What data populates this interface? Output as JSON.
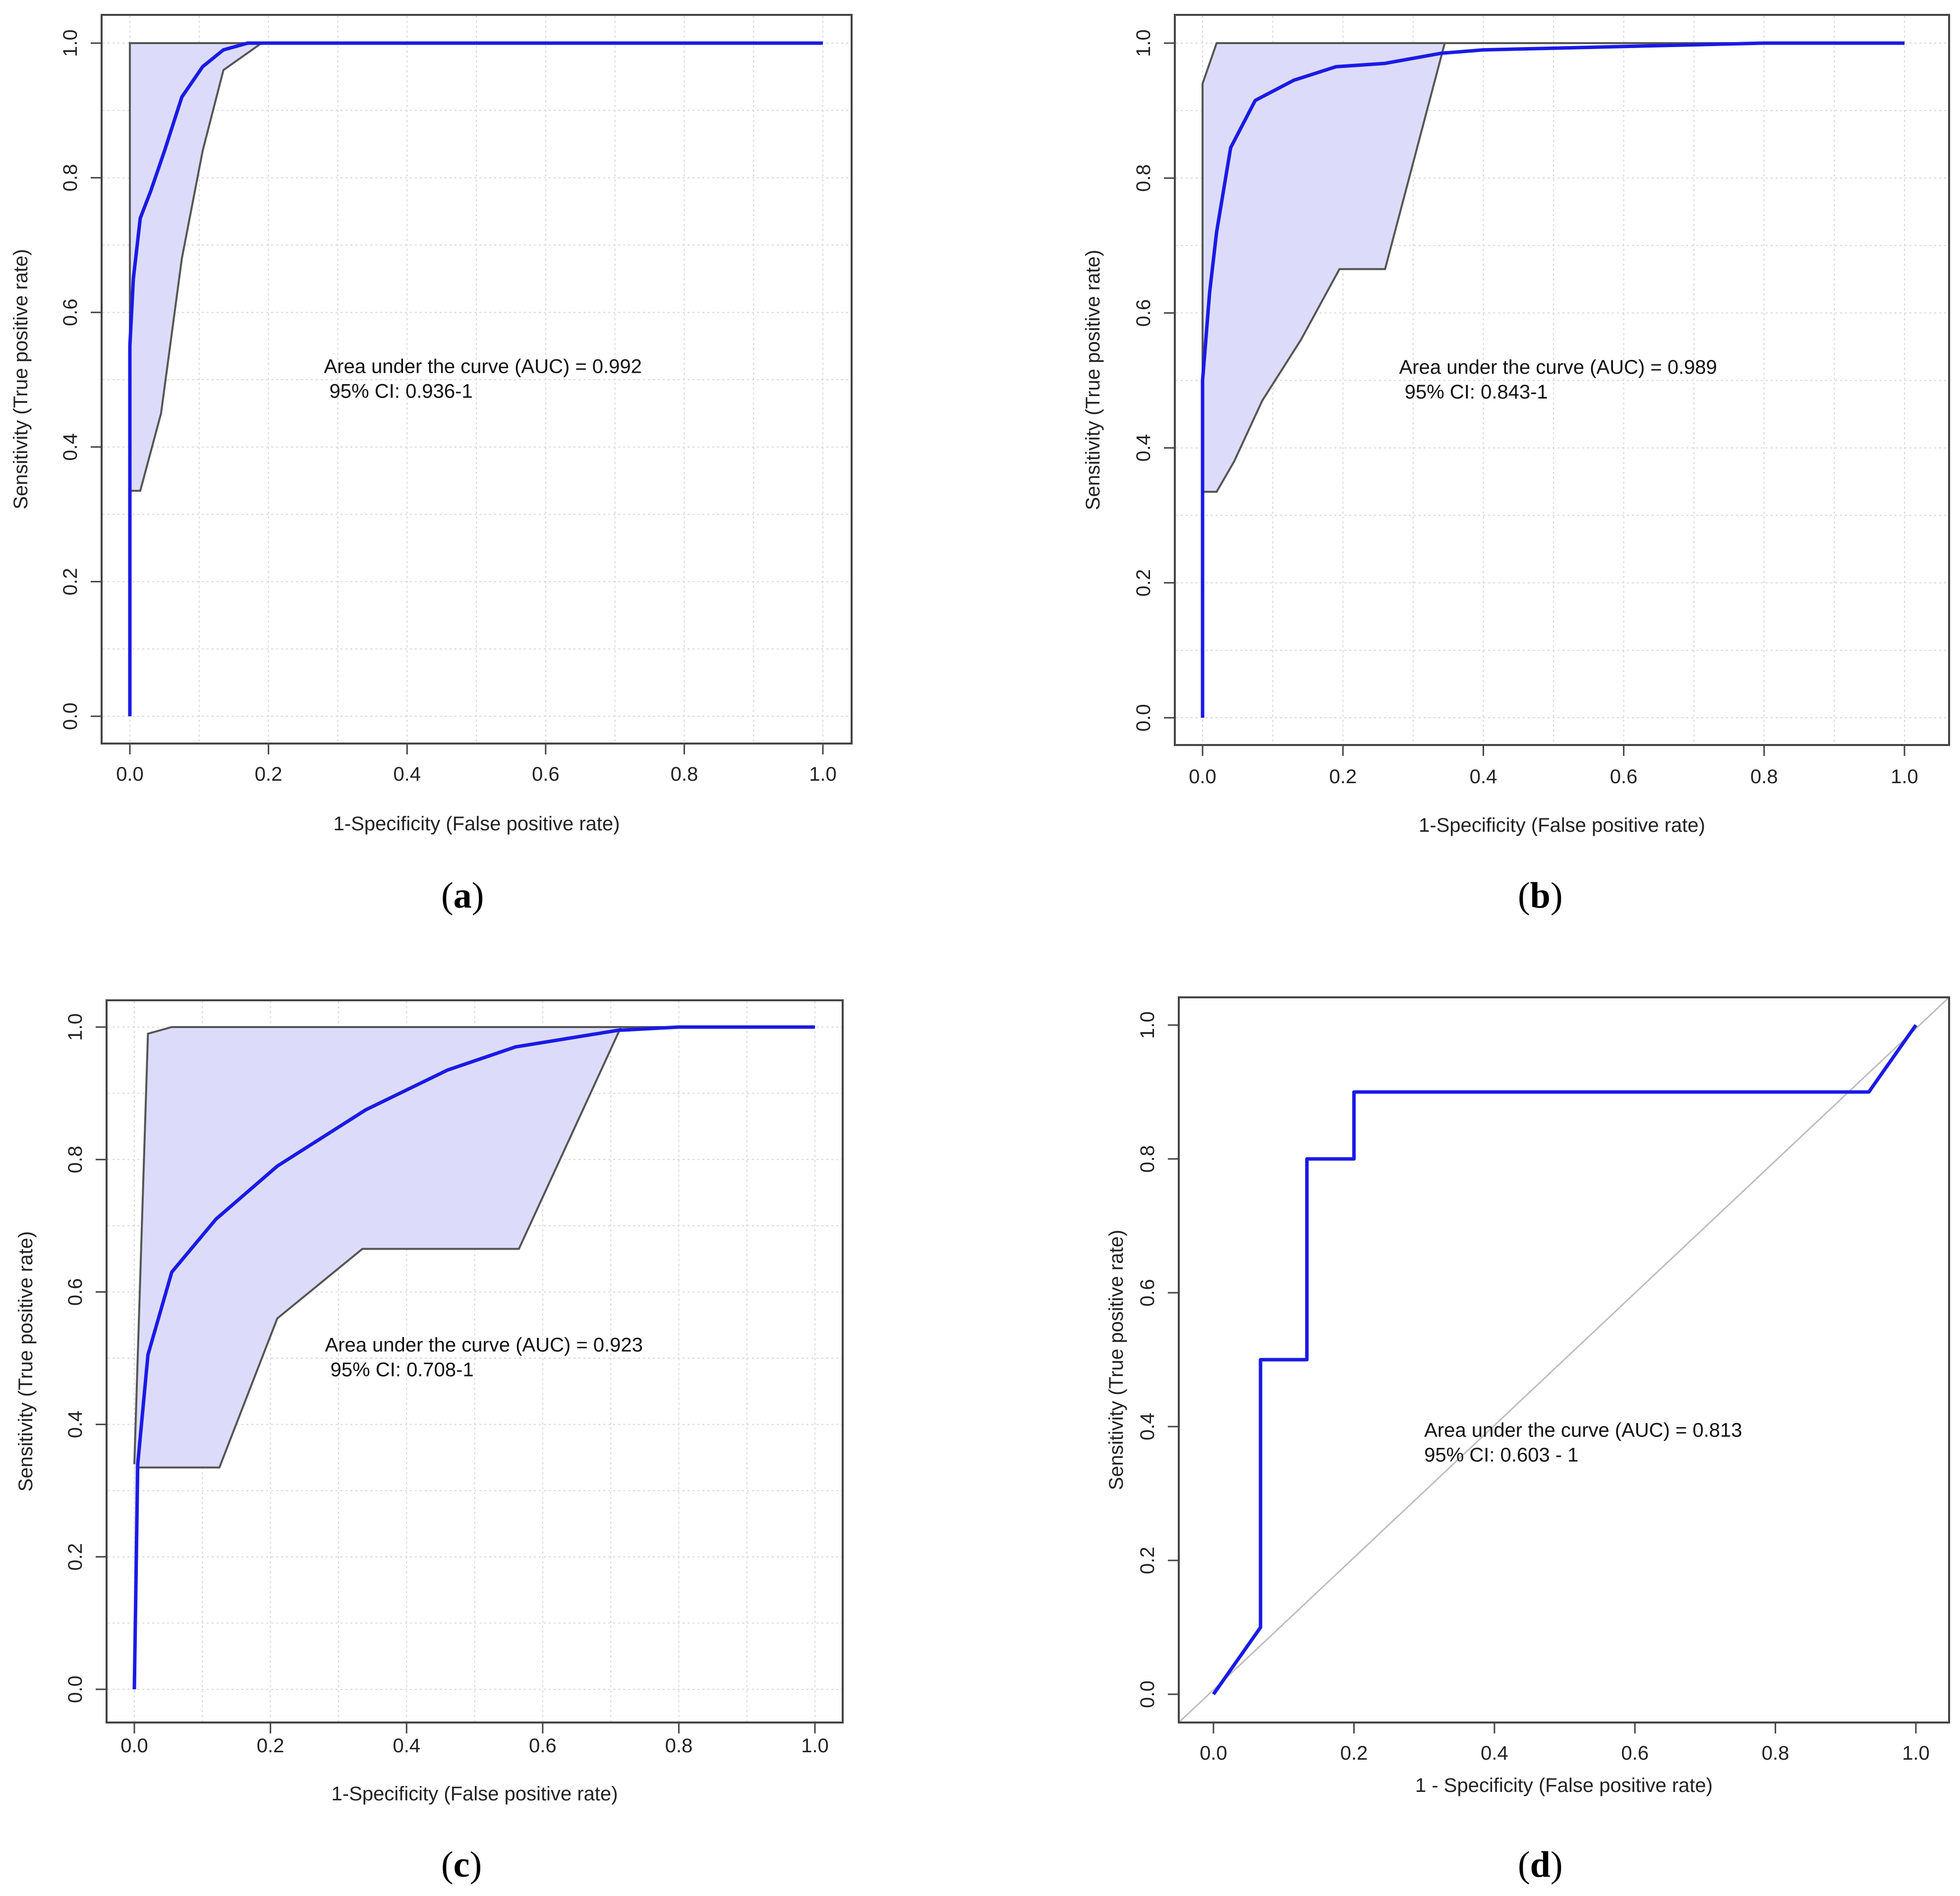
{
  "chart_data": [
    {
      "id": "a",
      "type": "line",
      "panel_label": "a",
      "xlabel": "1-Specificity (False positive rate)",
      "ylabel": "Sensitivity (True positive rate)",
      "xlim": [
        0,
        1
      ],
      "ylim": [
        0,
        1
      ],
      "xticks": [
        "0.0",
        "0.2",
        "0.4",
        "0.6",
        "0.8",
        "1.0"
      ],
      "yticks": [
        "0.0",
        "0.2",
        "0.4",
        "0.6",
        "0.8",
        "1.0"
      ],
      "grid": true,
      "diagonal": false,
      "annotation": [
        "Area under the curve (AUC) = 0.992",
        " 95% CI: 0.936-1"
      ],
      "annotation_pos": [
        0.28,
        0.51
      ],
      "series": [
        {
          "name": "ROC curve",
          "color": "#1a1ae6",
          "x": [
            0,
            0,
            0.005,
            0.015,
            0.03,
            0.05,
            0.075,
            0.105,
            0.135,
            0.17,
            0.2,
            0.4,
            0.6,
            0.8,
            1.0
          ],
          "y": [
            0,
            0.55,
            0.65,
            0.74,
            0.78,
            0.84,
            0.92,
            0.965,
            0.99,
            1.0,
            1.0,
            1.0,
            1.0,
            1.0,
            1.0
          ]
        }
      ],
      "ci_band": {
        "fill": "#dcdcfa",
        "stroke": "#555555",
        "upper": {
          "x": [
            0,
            0,
            0.2,
            1.0
          ],
          "y": [
            0,
            1.0,
            1.0,
            1.0
          ]
        },
        "lower": {
          "x": [
            0,
            0,
            0.015,
            0.045,
            0.075,
            0.105,
            0.135,
            0.19
          ],
          "y": [
            0,
            0.335,
            0.335,
            0.45,
            0.68,
            0.84,
            0.96,
            1.0
          ]
        }
      }
    },
    {
      "id": "b",
      "type": "line",
      "panel_label": "b",
      "xlabel": "1-Specificity (False positive rate)",
      "ylabel": "Sensitivity (True positive rate)",
      "xlim": [
        0,
        1
      ],
      "ylim": [
        0,
        1
      ],
      "xticks": [
        "0.0",
        "0.2",
        "0.4",
        "0.6",
        "0.8",
        "1.0"
      ],
      "yticks": [
        "0.0",
        "0.2",
        "0.4",
        "0.6",
        "0.8",
        "1.0"
      ],
      "grid": true,
      "diagonal": false,
      "annotation": [
        "Area under the curve (AUC) = 0.989",
        " 95% CI: 0.843-1"
      ],
      "annotation_pos": [
        0.28,
        0.51
      ],
      "series": [
        {
          "name": "ROC curve",
          "color": "#1a1ae6",
          "x": [
            0,
            0,
            0.01,
            0.02,
            0.04,
            0.075,
            0.13,
            0.19,
            0.26,
            0.34,
            0.4,
            0.6,
            0.8,
            1.0
          ],
          "y": [
            0,
            0.5,
            0.63,
            0.72,
            0.845,
            0.915,
            0.945,
            0.965,
            0.97,
            0.985,
            0.99,
            0.995,
            1.0,
            1.0
          ]
        }
      ],
      "ci_band": {
        "fill": "#dcdcfa",
        "stroke": "#555555",
        "upper": {
          "x": [
            0,
            0,
            0.02,
            0.2,
            1.0
          ],
          "y": [
            0,
            0.94,
            1.0,
            1.0,
            1.0
          ]
        },
        "lower": {
          "x": [
            0,
            0,
            0.02,
            0.045,
            0.085,
            0.14,
            0.195,
            0.26,
            0.345
          ],
          "y": [
            0,
            0.335,
            0.335,
            0.38,
            0.47,
            0.56,
            0.665,
            0.665,
            1.0
          ]
        }
      }
    },
    {
      "id": "c",
      "type": "line",
      "panel_label": "c",
      "xlabel": "1-Specificity (False positive rate)",
      "ylabel": "Sensitivity (True positive rate)",
      "xlim": [
        0,
        1
      ],
      "ylim": [
        0,
        1
      ],
      "xticks": [
        "0.0",
        "0.2",
        "0.4",
        "0.6",
        "0.8",
        "1.0"
      ],
      "yticks": [
        "0.0",
        "0.2",
        "0.4",
        "0.6",
        "0.8",
        "1.0"
      ],
      "grid": true,
      "diagonal": false,
      "annotation": [
        "Area under the curve (AUC) = 0.923",
        " 95% CI: 0.708-1"
      ],
      "annotation_pos": [
        0.28,
        0.51
      ],
      "series": [
        {
          "name": "ROC curve",
          "color": "#1a1ae6",
          "x": [
            0,
            0.005,
            0.02,
            0.055,
            0.12,
            0.21,
            0.34,
            0.46,
            0.56,
            0.71,
            0.8,
            0.9,
            1.0
          ],
          "y": [
            0,
            0.34,
            0.505,
            0.63,
            0.71,
            0.79,
            0.875,
            0.935,
            0.97,
            0.995,
            1.0,
            1.0,
            1.0
          ]
        }
      ],
      "ci_band": {
        "fill": "#dcdcfa",
        "stroke": "#555555",
        "upper": {
          "x": [
            0,
            0.02,
            0.055,
            0.2,
            1.0
          ],
          "y": [
            0.34,
            0.99,
            1.0,
            1.0,
            1.0
          ]
        },
        "lower": {
          "x": [
            0,
            0.005,
            0.125,
            0.21,
            0.335,
            0.565,
            0.715
          ],
          "y": [
            0,
            0.335,
            0.335,
            0.56,
            0.665,
            0.665,
            1.0
          ]
        }
      }
    },
    {
      "id": "d",
      "type": "line",
      "panel_label": "d",
      "xlabel": "1 - Specificity (False positive rate)",
      "ylabel": "Sensitivity (True positive rate)",
      "xlim": [
        0,
        1
      ],
      "ylim": [
        0,
        1
      ],
      "xticks": [
        "0.0",
        "0.2",
        "0.4",
        "0.6",
        "0.8",
        "1.0"
      ],
      "yticks": [
        "0.0",
        "0.2",
        "0.4",
        "0.6",
        "0.8",
        "1.0"
      ],
      "grid": false,
      "diagonal": true,
      "annotation": [
        "Area under the curve (AUC) = 0.813",
        "95% CI: 0.603 - 1"
      ],
      "annotation_pos": [
        0.3,
        0.385
      ],
      "series": [
        {
          "name": "ROC curve",
          "color": "#1a1ae6",
          "x": [
            0,
            0.067,
            0.067,
            0.133,
            0.133,
            0.2,
            0.2,
            0.933,
            1.0
          ],
          "y": [
            0,
            0.1,
            0.5,
            0.5,
            0.8,
            0.8,
            0.9,
            0.9,
            1.0
          ]
        }
      ]
    }
  ]
}
